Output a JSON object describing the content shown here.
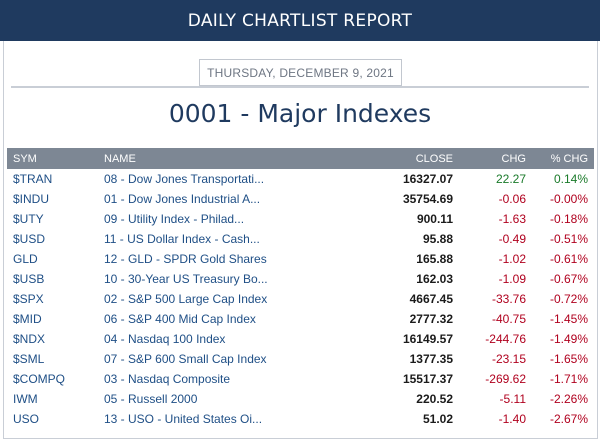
{
  "header": {
    "title": "DAILY CHARTLIST REPORT"
  },
  "report": {
    "date": "THURSDAY, DECEMBER 9, 2021",
    "title": "0001 - Major Indexes"
  },
  "table": {
    "columns": [
      "SYM",
      "NAME",
      "CLOSE",
      "CHG",
      "% CHG"
    ],
    "rows": [
      {
        "sym": "$TRAN",
        "name": "08 - Dow Jones Transportati...",
        "close": "16327.07",
        "chg": "22.27",
        "pct": "0.14%",
        "dir": "pos"
      },
      {
        "sym": "$INDU",
        "name": "01 - Dow Jones Industrial A...",
        "close": "35754.69",
        "chg": "-0.06",
        "pct": "-0.00%",
        "dir": "neg"
      },
      {
        "sym": "$UTY",
        "name": "09 - Utility Index - Philad...",
        "close": "900.11",
        "chg": "-1.63",
        "pct": "-0.18%",
        "dir": "neg"
      },
      {
        "sym": "$USD",
        "name": "11 - US Dollar Index - Cash...",
        "close": "95.88",
        "chg": "-0.49",
        "pct": "-0.51%",
        "dir": "neg"
      },
      {
        "sym": "GLD",
        "name": "12 - GLD - SPDR Gold Shares",
        "close": "165.88",
        "chg": "-1.02",
        "pct": "-0.61%",
        "dir": "neg"
      },
      {
        "sym": "$USB",
        "name": "10 - 30-Year US Treasury Bo...",
        "close": "162.03",
        "chg": "-1.09",
        "pct": "-0.67%",
        "dir": "neg"
      },
      {
        "sym": "$SPX",
        "name": "02 - S&P 500 Large Cap Index",
        "close": "4667.45",
        "chg": "-33.76",
        "pct": "-0.72%",
        "dir": "neg"
      },
      {
        "sym": "$MID",
        "name": "06 - S&P 400 Mid Cap Index",
        "close": "2777.32",
        "chg": "-40.75",
        "pct": "-1.45%",
        "dir": "neg"
      },
      {
        "sym": "$NDX",
        "name": "04 - Nasdaq 100 Index",
        "close": "16149.57",
        "chg": "-244.76",
        "pct": "-1.49%",
        "dir": "neg"
      },
      {
        "sym": "$SML",
        "name": "07 - S&P 600 Small Cap Index",
        "close": "1377.35",
        "chg": "-23.15",
        "pct": "-1.65%",
        "dir": "neg"
      },
      {
        "sym": "$COMPQ",
        "name": "03 - Nasdaq Composite",
        "close": "15517.37",
        "chg": "-269.62",
        "pct": "-1.71%",
        "dir": "neg"
      },
      {
        "sym": "IWM",
        "name": "05 - Russell 2000",
        "close": "220.52",
        "chg": "-5.11",
        "pct": "-2.26%",
        "dir": "neg"
      },
      {
        "sym": "USO",
        "name": "13 - USO - United States Oi...",
        "close": "51.02",
        "chg": "-1.40",
        "pct": "-2.67%",
        "dir": "neg"
      }
    ]
  },
  "colors": {
    "header_bg": "#1f3a5f",
    "table_header_bg": "#7d8794",
    "positive": "#1a7a2a",
    "negative": "#b0001e",
    "link": "#1f4f86"
  }
}
